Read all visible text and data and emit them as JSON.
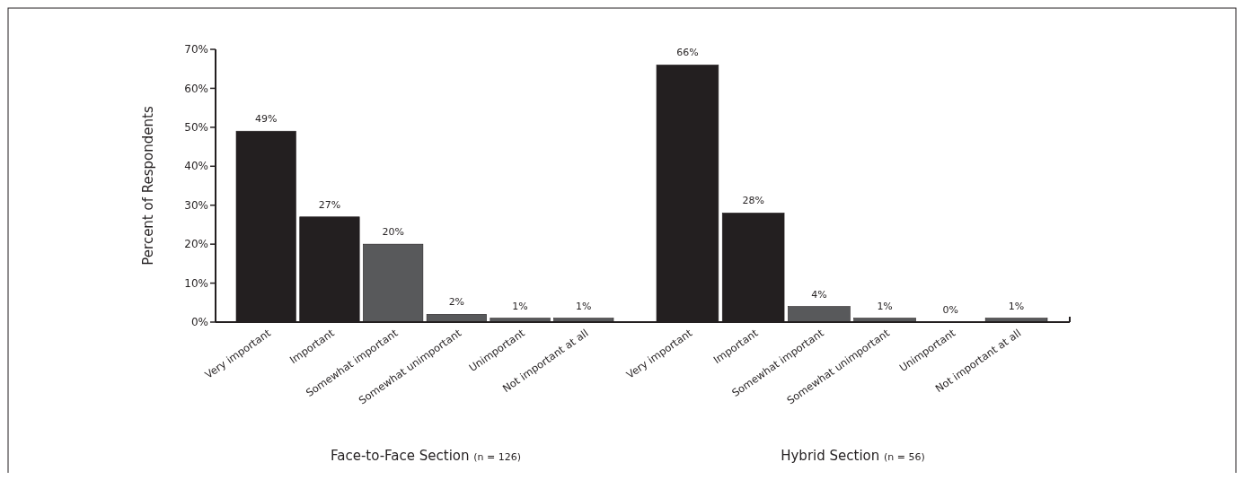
{
  "chart_data": [
    {
      "type": "bar",
      "ylabel": "Percent of Respondents",
      "xlabel": "Face-to-Face Section (n = 126)",
      "categories": [
        "Very important",
        "Important",
        "Somewhat important",
        "Somewhat unimportant",
        "Unimportant",
        "Not important at all"
      ],
      "values": [
        49,
        27,
        20,
        2,
        1,
        1
      ],
      "colors": [
        "#231f20",
        "#231f20",
        "#58595b",
        "#58595b",
        "#58595b",
        "#58595b"
      ],
      "ylim": [
        0,
        70
      ],
      "yticks": [
        {
          "value": 0,
          "label": "0%"
        },
        {
          "value": 10,
          "label": "10%"
        },
        {
          "value": 20,
          "label": "20%"
        },
        {
          "value": 30,
          "label": "30%"
        },
        {
          "value": 40,
          "label": "40%"
        },
        {
          "value": 50,
          "label": "50%"
        },
        {
          "value": 60,
          "label": "60%"
        },
        {
          "value": 70,
          "label": "70%"
        }
      ],
      "value_labels": [
        "49%",
        "27%",
        "20%",
        "2%",
        "1%",
        "1%"
      ]
    },
    {
      "type": "bar",
      "xlabel": "Hybrid Section (n = 56)",
      "categories": [
        "Very important",
        "Important",
        "Somewhat important",
        "Somewhat unimportant",
        "Unimportant",
        "Not important at all"
      ],
      "values": [
        66,
        28,
        4,
        1,
        0,
        1
      ],
      "colors": [
        "#231f20",
        "#231f20",
        "#58595b",
        "#58595b",
        "#58595b",
        "#58595b"
      ],
      "ylim": [
        0,
        70
      ],
      "value_labels": [
        "66%",
        "28%",
        "4%",
        "1%",
        "0%",
        "1%"
      ],
      "tick_labels": "x"
    }
  ]
}
